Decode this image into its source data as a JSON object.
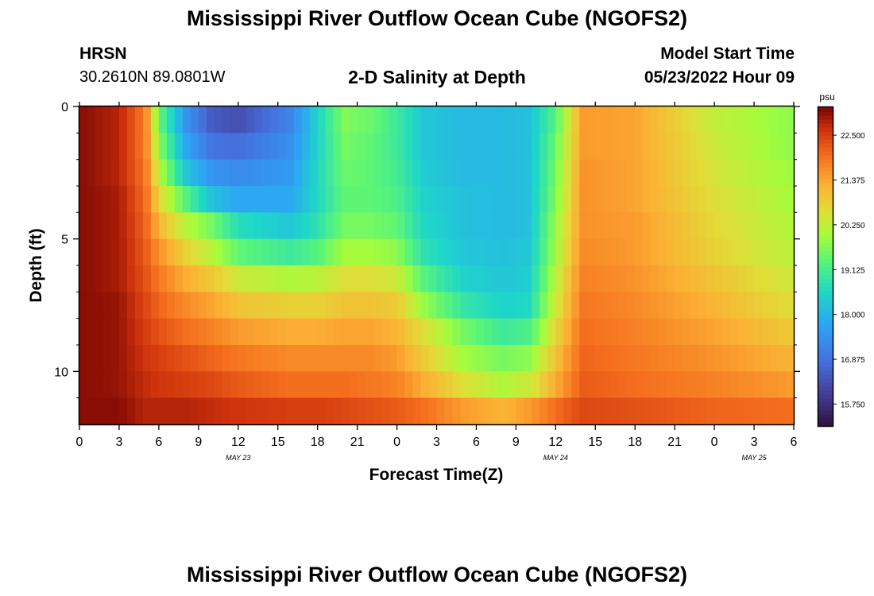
{
  "header": {
    "title_top": "Mississippi River Outflow Ocean Cube (NGOFS2)",
    "title_bottom": "Mississippi River Outflow Ocean Cube (NGOFS2)",
    "station": "HRSN",
    "coords": "30.2610N  89.0801W",
    "subtitle": "2-D Salinity at Depth",
    "model_start_label": "Model Start Time",
    "model_start_value": "05/23/2022 Hour 09"
  },
  "chart_data": {
    "type": "heatmap",
    "title": "2-D Salinity at Depth",
    "xlabel": "Forecast Time(Z)",
    "ylabel": "Depth (ft)",
    "units": "psu",
    "x_hours": [
      0,
      3,
      6,
      9,
      12,
      15,
      18,
      21,
      24,
      27,
      30,
      33,
      36,
      39,
      42,
      45,
      48,
      51,
      54
    ],
    "x_tick_labels": [
      "0",
      "3",
      "6",
      "9",
      "12",
      "15",
      "18",
      "21",
      "0",
      "3",
      "6",
      "9",
      "12",
      "15",
      "18",
      "21",
      "0",
      "3",
      "6"
    ],
    "date_labels": [
      {
        "hour": 12,
        "label": "MAY 23"
      },
      {
        "hour": 36,
        "label": "MAY 24"
      },
      {
        "hour": 51,
        "label": "MAY 25"
      }
    ],
    "xlim": [
      0,
      54
    ],
    "ylim": [
      0,
      12
    ],
    "y_ticks": [
      0,
      5,
      10
    ],
    "y_minor_ticks": [
      1,
      2,
      3,
      4,
      6,
      7,
      8,
      9,
      11
    ],
    "depth_layers_ft": [
      0.5,
      1.5,
      2.5,
      3.5,
      4.5,
      5.5,
      6.5,
      7.5,
      8.5,
      9.5,
      10.5,
      11.5
    ],
    "colorbar": {
      "min": 15.2,
      "max": 23.2,
      "ticks": [
        15.75,
        16.875,
        18.0,
        19.125,
        20.25,
        21.375,
        22.5
      ],
      "tick_labels": [
        "15.750",
        "16.875",
        "18.000",
        "19.125",
        "20.250",
        "21.375",
        "22.500"
      ]
    },
    "profile_layers": [
      {
        "depth_ft": 0.5,
        "time_hours": [
          0,
          3,
          5,
          6,
          8,
          10,
          12,
          16,
          18,
          20,
          22,
          24,
          26,
          29,
          32,
          34,
          36,
          38,
          42,
          48,
          54
        ],
        "salinity_psu": [
          23.1,
          22.8,
          21.8,
          19.5,
          17.5,
          16.5,
          16.3,
          17.2,
          18.5,
          19.7,
          19.5,
          19.0,
          18.3,
          18.1,
          18.1,
          18.2,
          19.3,
          21.5,
          21.4,
          20.3,
          19.8
        ]
      },
      {
        "depth_ft": 1.5,
        "time_hours": [
          0,
          3,
          5,
          6,
          8,
          10,
          12,
          16,
          18,
          20,
          22,
          24,
          26,
          29,
          32,
          34,
          36,
          38,
          42,
          48,
          54
        ],
        "salinity_psu": [
          23.1,
          22.8,
          21.8,
          19.8,
          17.8,
          16.9,
          16.8,
          17.4,
          18.5,
          19.6,
          19.4,
          19.0,
          18.3,
          18.1,
          18.1,
          18.2,
          19.5,
          21.5,
          21.4,
          20.4,
          19.8
        ]
      },
      {
        "depth_ft": 2.5,
        "time_hours": [
          0,
          3,
          5,
          6,
          8,
          10,
          12,
          16,
          18,
          20,
          22,
          24,
          26,
          29,
          32,
          34,
          36,
          38,
          42,
          48,
          54
        ],
        "salinity_psu": [
          23.1,
          22.8,
          21.9,
          20.2,
          18.3,
          17.5,
          17.3,
          17.6,
          18.6,
          19.5,
          19.4,
          19.1,
          18.4,
          18.1,
          18.1,
          18.2,
          19.6,
          21.6,
          21.4,
          20.5,
          19.9
        ]
      },
      {
        "depth_ft": 3.5,
        "time_hours": [
          0,
          3,
          5,
          6,
          8,
          10,
          12,
          16,
          18,
          20,
          22,
          24,
          26,
          29,
          32,
          34,
          36,
          38,
          42,
          48,
          54
        ],
        "salinity_psu": [
          23.1,
          22.9,
          22.0,
          20.7,
          19.3,
          18.2,
          17.8,
          17.8,
          18.6,
          19.4,
          19.4,
          19.2,
          18.5,
          18.2,
          18.1,
          18.2,
          19.7,
          21.6,
          21.4,
          20.6,
          20.0
        ]
      },
      {
        "depth_ft": 4.5,
        "time_hours": [
          0,
          3,
          5,
          6,
          8,
          10,
          12,
          16,
          18,
          20,
          22,
          24,
          26,
          29,
          32,
          34,
          36,
          38,
          42,
          48,
          54
        ],
        "salinity_psu": [
          23.1,
          22.9,
          22.1,
          21.2,
          20.2,
          19.6,
          18.7,
          18.3,
          18.8,
          19.6,
          19.6,
          19.4,
          18.6,
          18.2,
          18.1,
          18.2,
          19.9,
          21.6,
          21.5,
          20.7,
          20.1
        ]
      },
      {
        "depth_ft": 5.5,
        "time_hours": [
          0,
          3,
          5,
          6,
          8,
          10,
          12,
          16,
          18,
          20,
          22,
          24,
          26,
          29,
          32,
          34,
          36,
          38,
          42,
          48,
          54
        ],
        "salinity_psu": [
          23.1,
          22.9,
          22.2,
          21.6,
          20.8,
          20.2,
          19.4,
          19.0,
          19.3,
          20.0,
          20.0,
          19.8,
          18.8,
          18.3,
          18.2,
          18.3,
          20.0,
          21.7,
          21.5,
          20.8,
          20.2
        ]
      },
      {
        "depth_ft": 6.5,
        "time_hours": [
          0,
          3,
          5,
          6,
          8,
          10,
          12,
          16,
          18,
          20,
          22,
          24,
          26,
          29,
          32,
          34,
          36,
          38,
          42,
          48,
          54
        ],
        "salinity_psu": [
          23.1,
          22.9,
          22.3,
          21.9,
          21.3,
          20.9,
          20.4,
          20.1,
          20.2,
          20.6,
          20.6,
          20.4,
          19.3,
          18.5,
          18.3,
          18.4,
          20.2,
          21.8,
          21.6,
          21.0,
          20.4
        ]
      },
      {
        "depth_ft": 7.5,
        "time_hours": [
          0,
          3,
          5,
          6,
          8,
          10,
          12,
          16,
          18,
          20,
          22,
          24,
          26,
          29,
          32,
          34,
          36,
          38,
          42,
          48,
          54
        ],
        "salinity_psu": [
          23.1,
          23.0,
          22.4,
          22.1,
          21.7,
          21.4,
          21.0,
          20.8,
          20.8,
          21.0,
          21.0,
          20.9,
          19.9,
          18.9,
          18.5,
          18.6,
          20.4,
          21.9,
          21.7,
          21.2,
          20.6
        ]
      },
      {
        "depth_ft": 8.5,
        "time_hours": [
          0,
          3,
          5,
          6,
          8,
          10,
          12,
          16,
          18,
          20,
          22,
          24,
          26,
          29,
          32,
          34,
          36,
          38,
          42,
          48,
          54
        ],
        "salinity_psu": [
          23.1,
          23.0,
          22.5,
          22.3,
          22.0,
          21.8,
          21.5,
          21.3,
          21.3,
          21.4,
          21.4,
          21.2,
          20.6,
          19.6,
          19.0,
          19.2,
          20.7,
          22.0,
          21.8,
          21.4,
          20.9
        ]
      },
      {
        "depth_ft": 9.5,
        "time_hours": [
          0,
          3,
          5,
          6,
          8,
          10,
          12,
          16,
          18,
          20,
          22,
          24,
          26,
          29,
          32,
          34,
          36,
          38,
          42,
          48,
          54
        ],
        "salinity_psu": [
          23.1,
          23.0,
          22.6,
          22.5,
          22.3,
          22.1,
          21.9,
          21.7,
          21.7,
          21.7,
          21.7,
          21.5,
          20.9,
          20.0,
          19.6,
          19.8,
          21.0,
          22.1,
          21.9,
          21.6,
          21.2
        ]
      },
      {
        "depth_ft": 10.5,
        "time_hours": [
          0,
          3,
          5,
          6,
          8,
          10,
          12,
          16,
          18,
          20,
          22,
          24,
          26,
          29,
          32,
          34,
          36,
          38,
          42,
          48,
          54
        ],
        "salinity_psu": [
          23.1,
          23.0,
          22.7,
          22.6,
          22.5,
          22.4,
          22.2,
          22.0,
          22.0,
          22.0,
          21.9,
          21.8,
          21.3,
          20.6,
          20.1,
          20.4,
          21.3,
          22.2,
          22.0,
          21.8,
          21.5
        ]
      },
      {
        "depth_ft": 11.5,
        "time_hours": [
          0,
          3,
          5,
          6,
          8,
          10,
          12,
          16,
          18,
          20,
          22,
          24,
          26,
          29,
          32,
          34,
          36,
          38,
          42,
          48,
          54
        ],
        "salinity_psu": [
          23.1,
          23.1,
          22.8,
          22.8,
          22.8,
          22.7,
          22.6,
          22.5,
          22.5,
          22.4,
          22.3,
          22.2,
          22.0,
          21.5,
          21.2,
          21.5,
          22.0,
          22.4,
          22.3,
          22.1,
          22.0
        ]
      }
    ]
  }
}
